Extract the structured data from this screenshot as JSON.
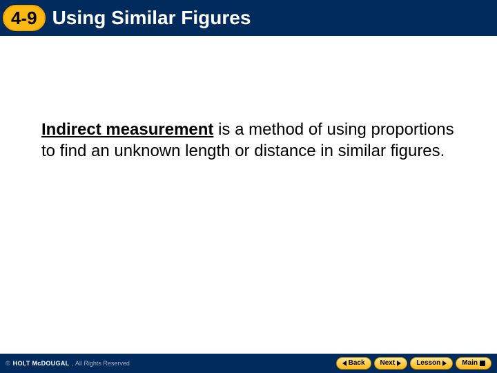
{
  "header": {
    "badge": "4-9",
    "title": "Using Similar Figures",
    "background_color": "#002b5c",
    "badge_bg": "#fdb813",
    "title_color": "#ffffff"
  },
  "content": {
    "term": "Indirect measurement",
    "rest": " is a method of using proportions to find an unknown length or distance in similar figures.",
    "font_size": 24,
    "text_color": "#000000"
  },
  "footer": {
    "logo": "HOLT McDOUGAL",
    "copyright": ", All Rights Reserved",
    "buttons": {
      "back": "Back",
      "next": "Next",
      "lesson": "Lesson",
      "main": "Main"
    },
    "button_bg": "#fdb813",
    "background_color": "#002b5c"
  }
}
